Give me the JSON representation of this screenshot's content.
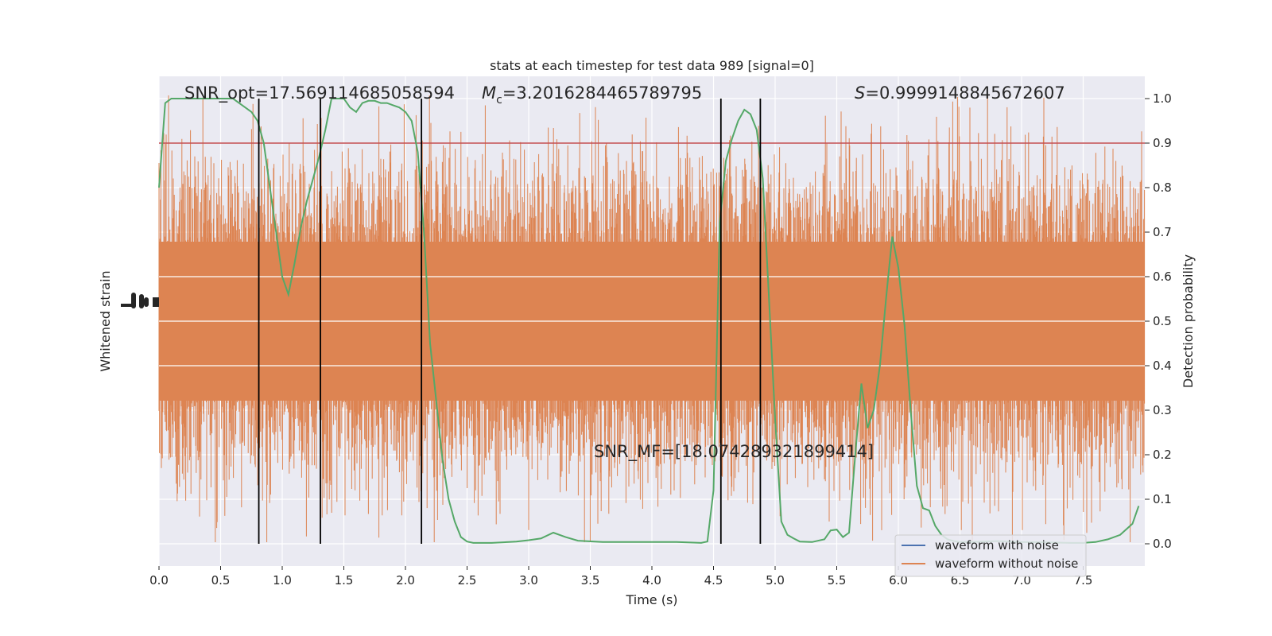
{
  "chart_data": {
    "type": "line",
    "title": "stats at each timestep for test data 989 [signal=0]",
    "xlabel": "Time (s)",
    "ylabel_left": "Whitened strain",
    "ylabel_right": "Detection probability",
    "xlim": [
      0.0,
      8.0
    ],
    "ylim_right": [
      -0.05,
      1.05
    ],
    "x_ticks": [
      0.0,
      0.5,
      1.0,
      1.5,
      2.0,
      2.5,
      3.0,
      3.5,
      4.0,
      4.5,
      5.0,
      5.5,
      6.0,
      6.5,
      7.0,
      7.5
    ],
    "x_tick_labels": [
      "0.0",
      "0.5",
      "1.0",
      "1.5",
      "2.0",
      "2.5",
      "3.0",
      "3.5",
      "4.0",
      "4.5",
      "5.0",
      "5.5",
      "6.0",
      "6.5",
      "7.0",
      "7.5"
    ],
    "y_right_ticks": [
      0.0,
      0.1,
      0.2,
      0.3,
      0.4,
      0.5,
      0.6,
      0.7,
      0.8,
      0.9,
      1.0
    ],
    "y_right_tick_labels": [
      "0.0",
      "0.1",
      "0.2",
      "0.3",
      "0.4",
      "0.5",
      "0.6",
      "0.7",
      "0.8",
      "0.9",
      "1.0"
    ],
    "grid": true,
    "legend_position": "lower-right",
    "threshold": 0.9,
    "vertical_lines_x": [
      0.81,
      1.31,
      2.13,
      4.56,
      4.88
    ],
    "annotations": {
      "snr_opt": "SNR_opt=17.569114685058594",
      "mc_symbol": "M",
      "mc_subscript": "c",
      "mc_value": "=3.2016284465789795",
      "s_symbol": "S",
      "s_value": "=0.9999148845672607",
      "snr_mf": "SNR_MF=[18.074289321899414]"
    },
    "series": [
      {
        "name": "waveform with noise",
        "color": "#4c72b0",
        "type": "strain"
      },
      {
        "name": "waveform without noise",
        "color": "#dd8452",
        "type": "strain"
      },
      {
        "name": "",
        "color": "#55a868",
        "type": "probability",
        "x": [
          0.0,
          0.05,
          0.1,
          0.2,
          0.3,
          0.4,
          0.5,
          0.6,
          0.7,
          0.75,
          0.8,
          0.85,
          0.9,
          0.95,
          1.0,
          1.05,
          1.1,
          1.15,
          1.2,
          1.25,
          1.3,
          1.35,
          1.4,
          1.45,
          1.5,
          1.55,
          1.6,
          1.65,
          1.7,
          1.75,
          1.8,
          1.85,
          1.9,
          1.95,
          2.0,
          2.05,
          2.1,
          2.15,
          2.2,
          2.25,
          2.3,
          2.35,
          2.4,
          2.45,
          2.5,
          2.55,
          2.7,
          2.9,
          3.0,
          3.1,
          3.2,
          3.3,
          3.4,
          3.6,
          3.8,
          4.0,
          4.2,
          4.4,
          4.45,
          4.5,
          4.55,
          4.6,
          4.65,
          4.7,
          4.75,
          4.8,
          4.85,
          4.9,
          4.95,
          5.0,
          5.05,
          5.1,
          5.15,
          5.2,
          5.3,
          5.4,
          5.45,
          5.5,
          5.55,
          5.6,
          5.65,
          5.7,
          5.75,
          5.8,
          5.85,
          5.9,
          5.95,
          6.0,
          6.05,
          6.1,
          6.15,
          6.2,
          6.25,
          6.3,
          6.35,
          6.4,
          6.45,
          6.5,
          6.6,
          6.8,
          7.0,
          7.2,
          7.4,
          7.5,
          7.6,
          7.7,
          7.8,
          7.9,
          7.95
        ],
        "values": [
          0.8,
          0.99,
          1.0,
          1.0,
          1.0,
          1.0,
          1.0,
          1.0,
          0.98,
          0.97,
          0.95,
          0.9,
          0.8,
          0.7,
          0.6,
          0.56,
          0.63,
          0.71,
          0.77,
          0.82,
          0.87,
          0.93,
          1.0,
          1.0,
          1.0,
          0.98,
          0.97,
          0.99,
          0.995,
          0.995,
          0.99,
          0.99,
          0.985,
          0.98,
          0.97,
          0.95,
          0.88,
          0.7,
          0.45,
          0.32,
          0.19,
          0.1,
          0.05,
          0.015,
          0.005,
          0.002,
          0.002,
          0.005,
          0.008,
          0.012,
          0.025,
          0.015,
          0.007,
          0.004,
          0.004,
          0.004,
          0.004,
          0.002,
          0.005,
          0.12,
          0.72,
          0.86,
          0.91,
          0.95,
          0.975,
          0.965,
          0.93,
          0.82,
          0.55,
          0.28,
          0.05,
          0.02,
          0.012,
          0.005,
          0.004,
          0.01,
          0.03,
          0.032,
          0.015,
          0.025,
          0.2,
          0.36,
          0.26,
          0.3,
          0.4,
          0.55,
          0.69,
          0.62,
          0.49,
          0.3,
          0.13,
          0.08,
          0.075,
          0.04,
          0.02,
          0.01,
          0.006,
          0.004,
          0.004,
          0.006,
          0.004,
          0.003,
          0.002,
          0.002,
          0.004,
          0.01,
          0.02,
          0.045,
          0.085
        ]
      }
    ]
  }
}
